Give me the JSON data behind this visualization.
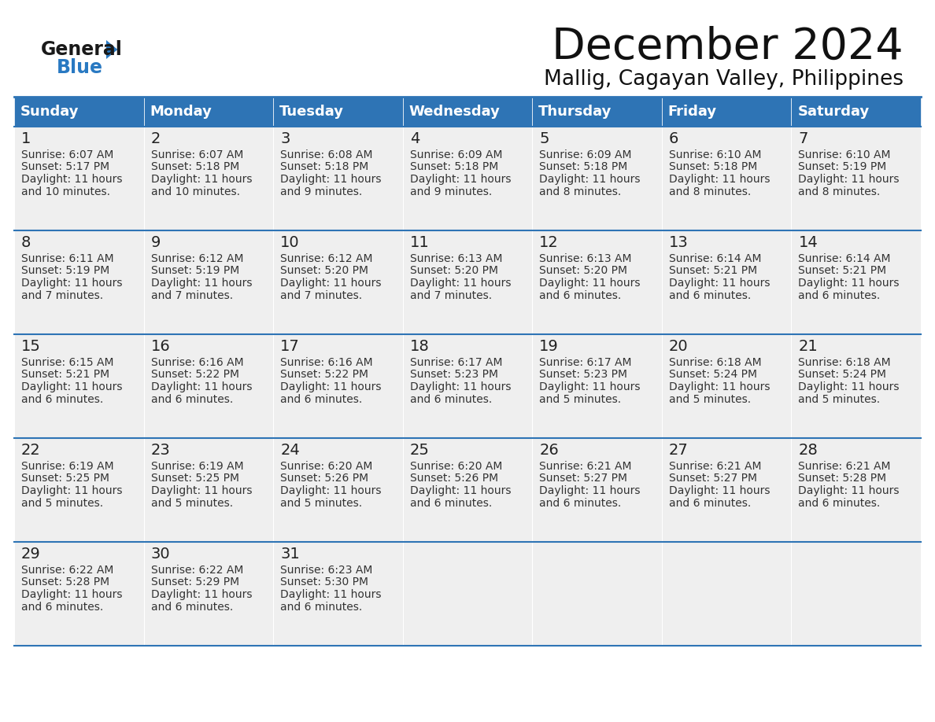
{
  "title": "December 2024",
  "subtitle": "Mallig, Cagayan Valley, Philippines",
  "header_color": "#2E74B5",
  "header_text_color": "#FFFFFF",
  "cell_bg_color": "#EFEFEF",
  "border_color": "#2E74B5",
  "days_of_week": [
    "Sunday",
    "Monday",
    "Tuesday",
    "Wednesday",
    "Thursday",
    "Friday",
    "Saturday"
  ],
  "weeks": [
    [
      {
        "day": 1,
        "sunrise": "6:07 AM",
        "sunset": "5:17 PM",
        "daylight_line1": "Daylight: 11 hours",
        "daylight_line2": "and 10 minutes."
      },
      {
        "day": 2,
        "sunrise": "6:07 AM",
        "sunset": "5:18 PM",
        "daylight_line1": "Daylight: 11 hours",
        "daylight_line2": "and 10 minutes."
      },
      {
        "day": 3,
        "sunrise": "6:08 AM",
        "sunset": "5:18 PM",
        "daylight_line1": "Daylight: 11 hours",
        "daylight_line2": "and 9 minutes."
      },
      {
        "day": 4,
        "sunrise": "6:09 AM",
        "sunset": "5:18 PM",
        "daylight_line1": "Daylight: 11 hours",
        "daylight_line2": "and 9 minutes."
      },
      {
        "day": 5,
        "sunrise": "6:09 AM",
        "sunset": "5:18 PM",
        "daylight_line1": "Daylight: 11 hours",
        "daylight_line2": "and 8 minutes."
      },
      {
        "day": 6,
        "sunrise": "6:10 AM",
        "sunset": "5:18 PM",
        "daylight_line1": "Daylight: 11 hours",
        "daylight_line2": "and 8 minutes."
      },
      {
        "day": 7,
        "sunrise": "6:10 AM",
        "sunset": "5:19 PM",
        "daylight_line1": "Daylight: 11 hours",
        "daylight_line2": "and 8 minutes."
      }
    ],
    [
      {
        "day": 8,
        "sunrise": "6:11 AM",
        "sunset": "5:19 PM",
        "daylight_line1": "Daylight: 11 hours",
        "daylight_line2": "and 7 minutes."
      },
      {
        "day": 9,
        "sunrise": "6:12 AM",
        "sunset": "5:19 PM",
        "daylight_line1": "Daylight: 11 hours",
        "daylight_line2": "and 7 minutes."
      },
      {
        "day": 10,
        "sunrise": "6:12 AM",
        "sunset": "5:20 PM",
        "daylight_line1": "Daylight: 11 hours",
        "daylight_line2": "and 7 minutes."
      },
      {
        "day": 11,
        "sunrise": "6:13 AM",
        "sunset": "5:20 PM",
        "daylight_line1": "Daylight: 11 hours",
        "daylight_line2": "and 7 minutes."
      },
      {
        "day": 12,
        "sunrise": "6:13 AM",
        "sunset": "5:20 PM",
        "daylight_line1": "Daylight: 11 hours",
        "daylight_line2": "and 6 minutes."
      },
      {
        "day": 13,
        "sunrise": "6:14 AM",
        "sunset": "5:21 PM",
        "daylight_line1": "Daylight: 11 hours",
        "daylight_line2": "and 6 minutes."
      },
      {
        "day": 14,
        "sunrise": "6:14 AM",
        "sunset": "5:21 PM",
        "daylight_line1": "Daylight: 11 hours",
        "daylight_line2": "and 6 minutes."
      }
    ],
    [
      {
        "day": 15,
        "sunrise": "6:15 AM",
        "sunset": "5:21 PM",
        "daylight_line1": "Daylight: 11 hours",
        "daylight_line2": "and 6 minutes."
      },
      {
        "day": 16,
        "sunrise": "6:16 AM",
        "sunset": "5:22 PM",
        "daylight_line1": "Daylight: 11 hours",
        "daylight_line2": "and 6 minutes."
      },
      {
        "day": 17,
        "sunrise": "6:16 AM",
        "sunset": "5:22 PM",
        "daylight_line1": "Daylight: 11 hours",
        "daylight_line2": "and 6 minutes."
      },
      {
        "day": 18,
        "sunrise": "6:17 AM",
        "sunset": "5:23 PM",
        "daylight_line1": "Daylight: 11 hours",
        "daylight_line2": "and 6 minutes."
      },
      {
        "day": 19,
        "sunrise": "6:17 AM",
        "sunset": "5:23 PM",
        "daylight_line1": "Daylight: 11 hours",
        "daylight_line2": "and 5 minutes."
      },
      {
        "day": 20,
        "sunrise": "6:18 AM",
        "sunset": "5:24 PM",
        "daylight_line1": "Daylight: 11 hours",
        "daylight_line2": "and 5 minutes."
      },
      {
        "day": 21,
        "sunrise": "6:18 AM",
        "sunset": "5:24 PM",
        "daylight_line1": "Daylight: 11 hours",
        "daylight_line2": "and 5 minutes."
      }
    ],
    [
      {
        "day": 22,
        "sunrise": "6:19 AM",
        "sunset": "5:25 PM",
        "daylight_line1": "Daylight: 11 hours",
        "daylight_line2": "and 5 minutes."
      },
      {
        "day": 23,
        "sunrise": "6:19 AM",
        "sunset": "5:25 PM",
        "daylight_line1": "Daylight: 11 hours",
        "daylight_line2": "and 5 minutes."
      },
      {
        "day": 24,
        "sunrise": "6:20 AM",
        "sunset": "5:26 PM",
        "daylight_line1": "Daylight: 11 hours",
        "daylight_line2": "and 5 minutes."
      },
      {
        "day": 25,
        "sunrise": "6:20 AM",
        "sunset": "5:26 PM",
        "daylight_line1": "Daylight: 11 hours",
        "daylight_line2": "and 6 minutes."
      },
      {
        "day": 26,
        "sunrise": "6:21 AM",
        "sunset": "5:27 PM",
        "daylight_line1": "Daylight: 11 hours",
        "daylight_line2": "and 6 minutes."
      },
      {
        "day": 27,
        "sunrise": "6:21 AM",
        "sunset": "5:27 PM",
        "daylight_line1": "Daylight: 11 hours",
        "daylight_line2": "and 6 minutes."
      },
      {
        "day": 28,
        "sunrise": "6:21 AM",
        "sunset": "5:28 PM",
        "daylight_line1": "Daylight: 11 hours",
        "daylight_line2": "and 6 minutes."
      }
    ],
    [
      {
        "day": 29,
        "sunrise": "6:22 AM",
        "sunset": "5:28 PM",
        "daylight_line1": "Daylight: 11 hours",
        "daylight_line2": "and 6 minutes."
      },
      {
        "day": 30,
        "sunrise": "6:22 AM",
        "sunset": "5:29 PM",
        "daylight_line1": "Daylight: 11 hours",
        "daylight_line2": "and 6 minutes."
      },
      {
        "day": 31,
        "sunrise": "6:23 AM",
        "sunset": "5:30 PM",
        "daylight_line1": "Daylight: 11 hours",
        "daylight_line2": "and 6 minutes."
      },
      null,
      null,
      null,
      null
    ]
  ],
  "logo_general_color": "#1a1a1a",
  "logo_blue_color": "#2979C2",
  "title_fontsize": 40,
  "subtitle_fontsize": 19,
  "header_fontsize": 13,
  "day_num_fontsize": 14,
  "cell_text_fontsize": 10
}
